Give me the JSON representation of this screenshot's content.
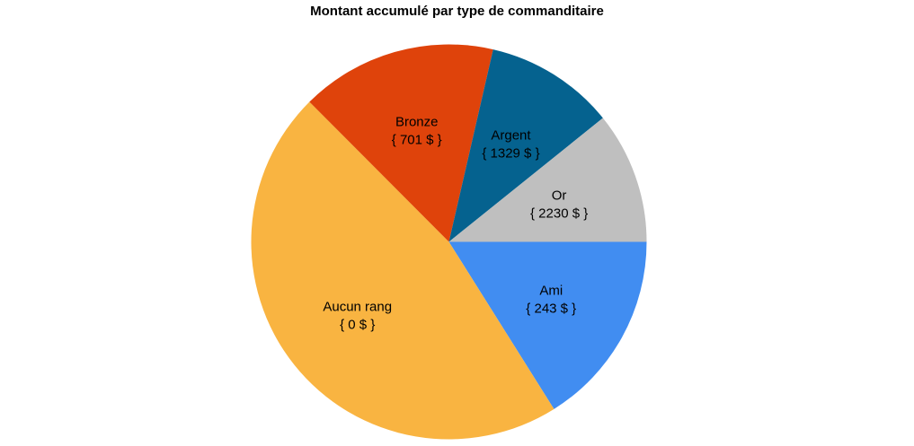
{
  "chart_data": {
    "type": "pie",
    "title": "Montant accumulé par type de commanditaire",
    "slices": [
      {
        "label": "Ami",
        "value_label": "{ 243 $ }",
        "share": 0.1608,
        "color": "#418df1"
      },
      {
        "label": "Aucun rang",
        "value_label": "{ 0 $ }",
        "share": 0.4646,
        "color": "#f9b441"
      },
      {
        "label": "Bronze",
        "value_label": "{ 701 $ }",
        "share": 0.1605,
        "color": "#df430b"
      },
      {
        "label": "Argent",
        "value_label": "{ 1329 $ }",
        "share": 0.1062,
        "color": "#05628f"
      },
      {
        "label": "Or",
        "value_label": "{ 2230 $ }",
        "share": 0.1079,
        "color": "#bfbfbf"
      }
    ],
    "start": "3 o'clock",
    "direction": "clockwise",
    "legend": "none"
  }
}
